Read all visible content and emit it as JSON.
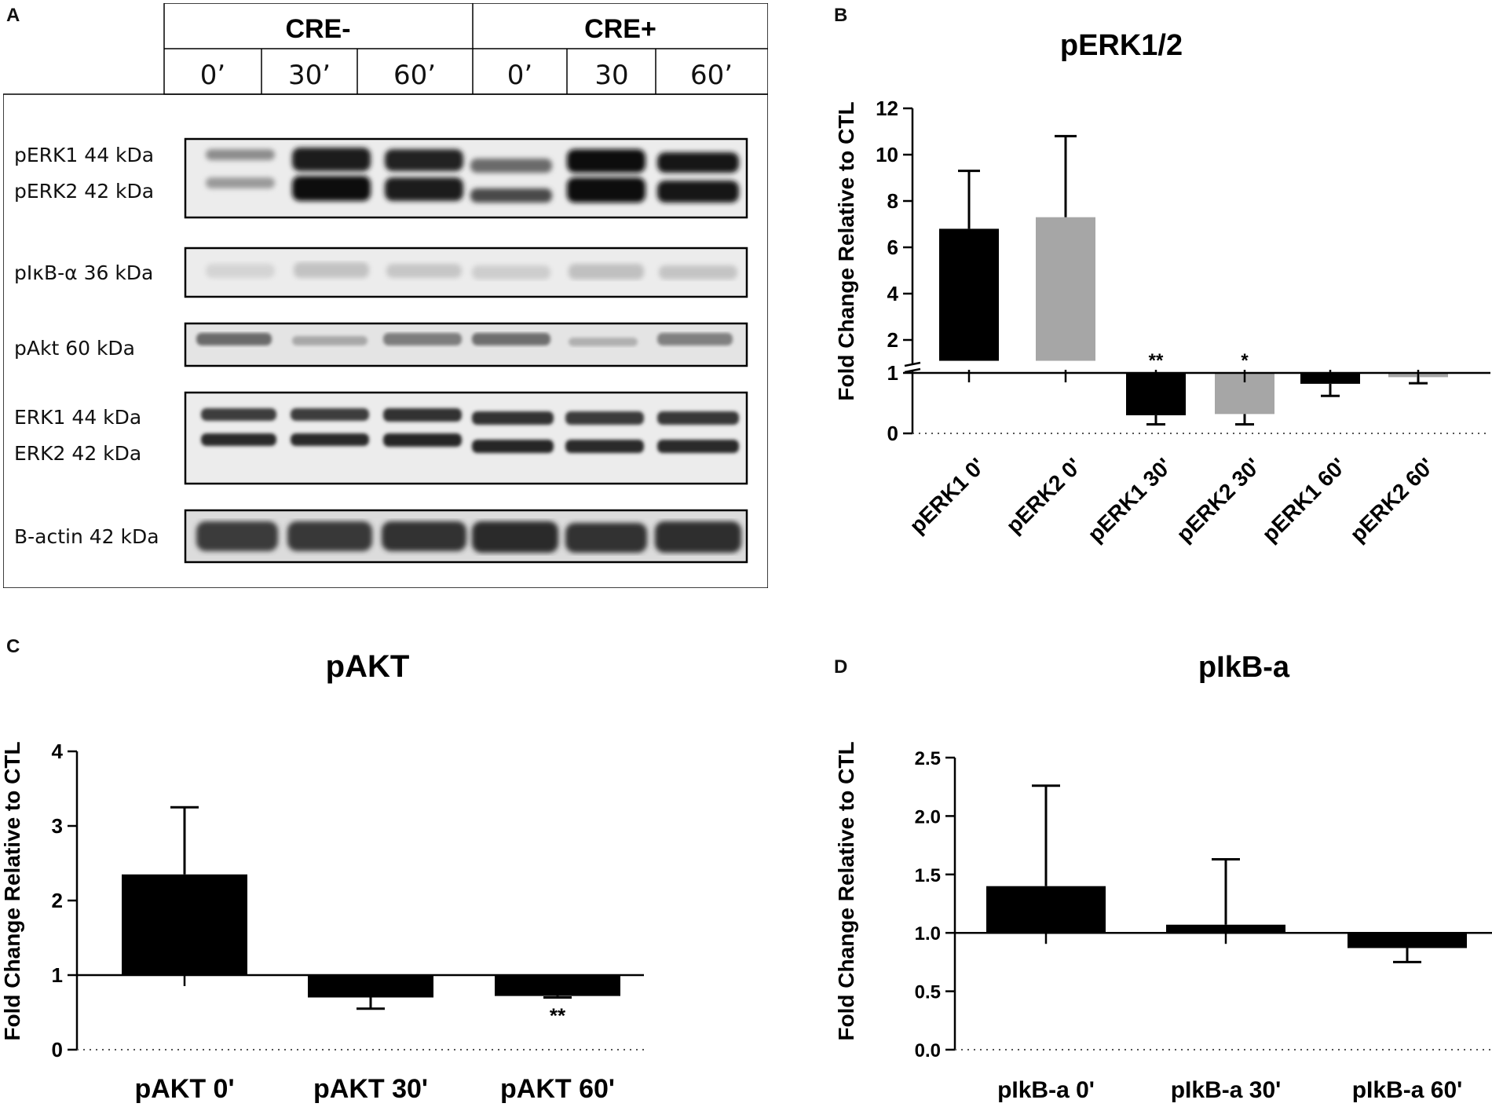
{
  "panels": {
    "a": "A",
    "b": "B",
    "c": "C",
    "d": "D"
  },
  "blot": {
    "groups": [
      "CRE-",
      "CRE+"
    ],
    "timepoints": [
      "0’",
      "30’",
      "60’",
      "0’",
      "30",
      "60’"
    ],
    "band_labels": [
      "pERK1 44 kDa",
      "pERK2 42 kDa",
      "pIκB-α 36 kDa",
      "pAkt 60 kDa",
      "ERK1 44 kDa",
      "ERK2 42 kDa",
      "B-actin 42 kDa"
    ]
  },
  "colors": {
    "black": "#000000",
    "grey": "#a6a6a6"
  },
  "chart_data": [
    {
      "id": "B",
      "type": "bar",
      "title": "pERK1/2",
      "ylabel": "Fold Change Relative to CTL",
      "categories": [
        "pERK1 0'",
        "pERK2 0'",
        "pERK1 30'",
        "pERK2 30'",
        "pERK1 60'",
        "pERK2 60'"
      ],
      "values": [
        6.8,
        7.3,
        0.3,
        0.32,
        0.82,
        0.93
      ],
      "errors": [
        2.5,
        3.5,
        0.15,
        0.17,
        0.2,
        0.1
      ],
      "bar_colors": [
        "black",
        "grey",
        "black",
        "grey",
        "black",
        "grey"
      ],
      "significance": [
        "",
        "",
        "**",
        "*",
        "",
        ""
      ],
      "baseline": 1,
      "axis_break": [
        1,
        1
      ],
      "yticks_lower": [
        "0",
        "1"
      ],
      "yticks_upper": [
        "2",
        "4",
        "6",
        "8",
        "10",
        "12"
      ],
      "ylim": [
        0,
        12
      ]
    },
    {
      "id": "C",
      "type": "bar",
      "title": "pAKT",
      "ylabel": "Fold Change Relative to CTL",
      "categories": [
        "pAKT 0'",
        "pAKT 30'",
        "pAKT 60'"
      ],
      "values": [
        2.35,
        0.7,
        0.72
      ],
      "errors": [
        0.9,
        0.15,
        0.02
      ],
      "significance": [
        "",
        "",
        "**"
      ],
      "baseline": 1,
      "yticks": [
        "0",
        "1",
        "2",
        "3",
        "4"
      ],
      "ylim": [
        0,
        4
      ]
    },
    {
      "id": "D",
      "type": "bar",
      "title": "pIkB-a",
      "ylabel": "Fold Change Relative to CTL",
      "categories": [
        "pIkB-a 0'",
        "pIkB-a 30'",
        "pIkB-a 60'"
      ],
      "values": [
        1.4,
        1.07,
        0.87
      ],
      "errors": [
        0.86,
        0.56,
        0.12
      ],
      "significance": [
        "",
        "",
        ""
      ],
      "baseline": 1,
      "yticks": [
        "0.0",
        "0.5",
        "1.0",
        "1.5",
        "2.0",
        "2.5"
      ],
      "ylim": [
        0,
        2.5
      ]
    }
  ]
}
